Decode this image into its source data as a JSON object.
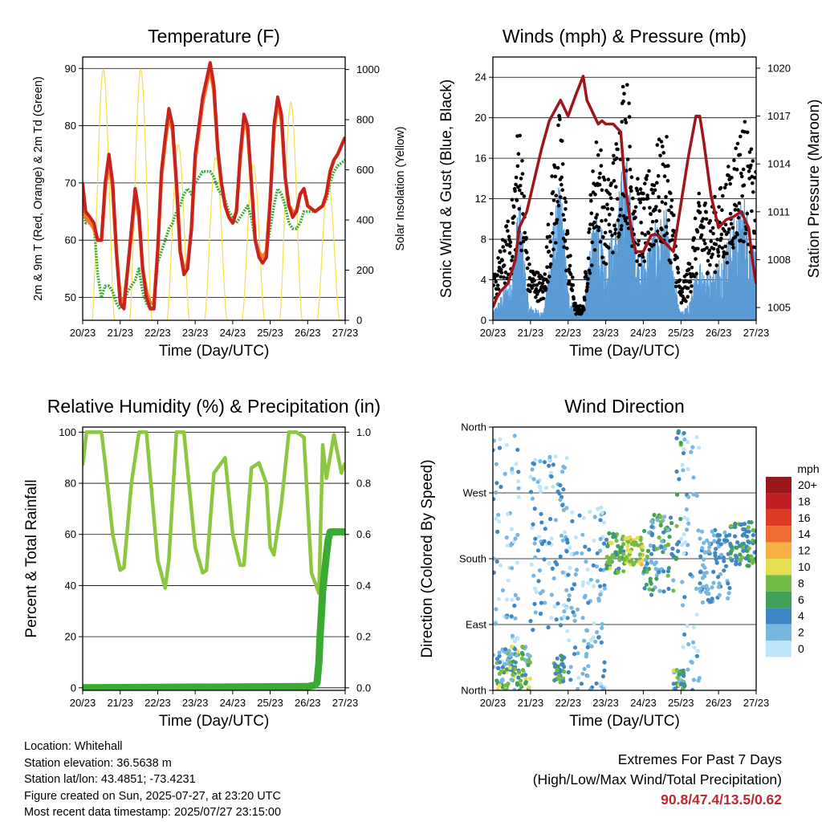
{
  "time_ticks": [
    "20/23",
    "21/23",
    "22/23",
    "23/23",
    "24/23",
    "25/23",
    "26/23",
    "27/23"
  ],
  "xlabel": "Time (Day/UTC)",
  "chart_data": [
    {
      "type": "line",
      "title": "Temperature (F)",
      "xlabel": "Time (Day/UTC)",
      "ylabel": "2m & 9m T (Red, Orange) & 2m Td (Green)",
      "y2label": "Solar Insolation (Yellow)",
      "ylim": [
        46,
        92
      ],
      "yticks": [
        50,
        60,
        70,
        80,
        90
      ],
      "y2lim": [
        0,
        1050
      ],
      "y2ticks": [
        0,
        200,
        400,
        600,
        800,
        1000
      ],
      "grid": "horizontal",
      "x_days": [
        0,
        0.08,
        0.2,
        0.3,
        0.4,
        0.5,
        0.6,
        0.7,
        0.8,
        0.9,
        1.0,
        1.1,
        1.2,
        1.3,
        1.4,
        1.5,
        1.6,
        1.7,
        1.8,
        1.9,
        2.0,
        2.1,
        2.2,
        2.3,
        2.4,
        2.5,
        2.6,
        2.7,
        2.8,
        2.9,
        3.0,
        3.2,
        3.4,
        3.5,
        3.6,
        3.7,
        3.8,
        3.9,
        4.0,
        4.1,
        4.2,
        4.3,
        4.4,
        4.5,
        4.6,
        4.7,
        4.8,
        4.9,
        5.0,
        5.1,
        5.2,
        5.3,
        5.4,
        5.5,
        5.6,
        5.7,
        5.8,
        5.9,
        6.0,
        6.2,
        6.4,
        6.5,
        6.6,
        6.7,
        6.8,
        7.0
      ],
      "series": [
        {
          "name": "2m T",
          "color": "#c8211f",
          "values": [
            70,
            65,
            64,
            63,
            60,
            60,
            70,
            75,
            70,
            58,
            49,
            48,
            55,
            62,
            69,
            65,
            55,
            50,
            48,
            48,
            58,
            72,
            78,
            83,
            80,
            70,
            58,
            54,
            55,
            62,
            75,
            85,
            91,
            87,
            76,
            70,
            66,
            64,
            63,
            65,
            75,
            82,
            80,
            70,
            60,
            57,
            56,
            57,
            67,
            80,
            85,
            82,
            71,
            66,
            64,
            65,
            68,
            69,
            66,
            65,
            66,
            68,
            72,
            74,
            75,
            78
          ]
        },
        {
          "name": "9m T",
          "color": "#f47b20",
          "values": [
            69,
            64,
            63,
            62,
            60,
            60,
            69,
            74,
            69,
            58,
            50,
            49,
            55,
            61,
            68,
            64,
            55,
            51,
            49,
            49,
            58,
            71,
            77,
            82,
            79,
            70,
            58,
            55,
            56,
            62,
            74,
            84,
            90,
            86,
            76,
            70,
            66,
            64,
            63,
            65,
            74,
            81,
            79,
            70,
            60,
            58,
            57,
            58,
            67,
            79,
            84,
            81,
            71,
            66,
            65,
            65,
            68,
            69,
            66,
            65,
            66,
            68,
            72,
            74,
            75,
            78
          ]
        },
        {
          "name": "2m Td",
          "color": "#3aaa35",
          "values": [
            66,
            63,
            63,
            63,
            54,
            50,
            52,
            52,
            51,
            49,
            48,
            49,
            51,
            52,
            53,
            55,
            51,
            49,
            48,
            49,
            56,
            58,
            60,
            62,
            63,
            65,
            66,
            68,
            69,
            68,
            70,
            72,
            72,
            71,
            69,
            68,
            67,
            65,
            64,
            63,
            64,
            65,
            66,
            64,
            60,
            58,
            57,
            58,
            62,
            66,
            69,
            68,
            66,
            63,
            62,
            62,
            63,
            65,
            65,
            65,
            66,
            67,
            70,
            72,
            73,
            74
          ]
        }
      ],
      "solar_insolation": {
        "name": "Solar Insolation",
        "color": "#f5de4b",
        "days": [
          0.55,
          1.55,
          2.55,
          3.55,
          4.55,
          5.55,
          6.55
        ],
        "peak_values": [
          1000,
          1000,
          700,
          650,
          620,
          870,
          550
        ]
      }
    },
    {
      "type": "line",
      "title": "Winds (mph) & Pressure (mb)",
      "xlabel": "Time (Day/UTC)",
      "ylabel": "Sonic Wind & Gust (Blue, Black)",
      "y2label": "Station Pressure (Maroon)",
      "ylim": [
        0,
        26
      ],
      "yticks": [
        0,
        4,
        8,
        12,
        16,
        20,
        24
      ],
      "y2lim": [
        1004.2,
        1020.7
      ],
      "y2ticks": [
        1005,
        1008,
        1011,
        1014,
        1017,
        1020
      ],
      "grid": "horizontal",
      "pressure": {
        "name": "Station Pressure",
        "color": "#a0141b",
        "x_days": [
          0,
          0.1,
          0.2,
          0.4,
          0.6,
          0.7,
          0.9,
          1.1,
          1.3,
          1.5,
          1.8,
          2.0,
          2.2,
          2.4,
          2.5,
          2.8,
          2.9,
          3.0,
          3.2,
          3.4,
          3.5,
          3.7,
          3.8,
          4.0,
          4.1,
          4.2,
          4.3,
          4.4,
          4.6,
          4.8,
          5.0,
          5.2,
          5.4,
          5.5,
          5.6,
          5.8,
          6.0,
          6.2,
          6.4,
          6.6,
          6.8,
          6.9,
          7.0
        ],
        "values": [
          1005,
          1005.6,
          1006,
          1006.5,
          1008,
          1010,
          1011,
          1013,
          1015,
          1016.7,
          1018,
          1017,
          1018.3,
          1019.5,
          1018,
          1016.5,
          1016.7,
          1016.5,
          1016.5,
          1016,
          1013,
          1009.5,
          1008.5,
          1008.5,
          1009,
          1009.5,
          1009.6,
          1009.5,
          1009,
          1008.5,
          1011.5,
          1014.5,
          1017,
          1017,
          1015.5,
          1012,
          1010,
          1010.5,
          1010.7,
          1011,
          1010,
          1008,
          1006.5
        ]
      },
      "wind_profile": {
        "x_days": [
          0,
          0.5,
          0.7,
          0.95,
          1.35,
          1.6,
          1.8,
          2.0,
          2.2,
          2.4,
          2.6,
          2.8,
          3.0,
          3.3,
          3.5,
          3.6,
          3.8,
          4.0,
          4.3,
          4.6,
          4.8,
          5.0,
          5.2,
          5.5,
          5.8,
          6.2,
          6.5,
          6.7,
          7.0
        ],
        "sustained": [
          0.5,
          3,
          8,
          1,
          0.5,
          6,
          9,
          2,
          0.5,
          0.5,
          5,
          8,
          4,
          7,
          11,
          10,
          5,
          4,
          6,
          7,
          3,
          0.5,
          1,
          4,
          3,
          5,
          7,
          8,
          4
        ],
        "gust": [
          3,
          8,
          15,
          4,
          3,
          11,
          15,
          6,
          1,
          1,
          9,
          14,
          9,
          13,
          18,
          16,
          10,
          9,
          12,
          13,
          8,
          2,
          4,
          9,
          8,
          10,
          13,
          14,
          10
        ]
      },
      "series": [
        {
          "name": "Sonic Wind",
          "color": "#5b9bd5"
        },
        {
          "name": "Gust",
          "color": "#000000"
        }
      ]
    },
    {
      "type": "line",
      "title": "Relative Humidity (%) & Precipitation (in)",
      "xlabel": "Time (Day/UTC)",
      "ylabel": "Percent & Total Rainfall",
      "ylim": [
        -1,
        102
      ],
      "yticks": [
        0,
        20,
        40,
        60,
        80,
        100
      ],
      "y2lim": [
        -0.01,
        1.02
      ],
      "y2ticks": [
        0.0,
        0.2,
        0.4,
        0.6,
        0.8,
        1.0
      ],
      "grid": "horizontal",
      "series": [
        {
          "name": "Relative Humidity",
          "color": "#8dc63f",
          "x_days": [
            0,
            0.1,
            0.3,
            0.5,
            0.6,
            0.8,
            1.0,
            1.1,
            1.3,
            1.5,
            1.7,
            2.0,
            2.2,
            2.3,
            2.5,
            2.7,
            3.0,
            3.2,
            3.3,
            3.5,
            3.8,
            4.0,
            4.2,
            4.3,
            4.5,
            4.7,
            4.9,
            5.0,
            5.1,
            5.3,
            5.5,
            5.7,
            5.9,
            6.1,
            6.3,
            6.4,
            6.5,
            6.7,
            6.9,
            7.0
          ],
          "values": [
            87,
            100,
            100,
            100,
            88,
            60,
            46,
            47,
            80,
            100,
            100,
            50,
            39,
            50,
            100,
            100,
            55,
            45,
            46,
            84,
            90,
            60,
            48,
            48,
            86,
            88,
            80,
            55,
            52,
            72,
            100,
            100,
            98,
            45,
            37,
            95,
            82,
            99,
            84,
            88
          ]
        },
        {
          "name": "Total Precipitation",
          "color": "#3aaa35",
          "x_days": [
            0,
            6.0,
            6.2,
            6.25,
            6.3,
            6.33,
            6.37,
            6.4,
            6.45,
            6.5,
            6.55,
            6.6,
            6.65,
            7.0
          ],
          "values": [
            0,
            0.005,
            0.01,
            0.02,
            0.1,
            0.2,
            0.3,
            0.38,
            0.45,
            0.52,
            0.58,
            0.61,
            0.61,
            0.61
          ]
        }
      ]
    },
    {
      "type": "scatter",
      "title": "Wind Direction",
      "xlabel": "Time (Day/UTC)",
      "ylabel": "Direction (Colored By Speed)",
      "ylim": [
        0,
        360
      ],
      "yticks": [
        "North",
        "East",
        "South",
        "West",
        "North"
      ],
      "grid": "horizontal",
      "legend_title": "mph",
      "legend_labels": [
        "0",
        "2",
        "4",
        "6",
        "8",
        "10",
        "12",
        "14",
        "16",
        "18",
        "20+"
      ],
      "legend_colors": [
        "#bfe6f8",
        "#79b7e3",
        "#3e87c3",
        "#3fa05b",
        "#74bb43",
        "#e4df52",
        "#f7b043",
        "#ef6c30",
        "#de3a26",
        "#c11f24",
        "#99171b"
      ],
      "clusters": [
        {
          "day_start": 0.0,
          "day_end": 0.7,
          "dir_min": 0,
          "dir_max": 360,
          "speed_min": 0,
          "speed_max": 4
        },
        {
          "day_start": 0.1,
          "day_end": 1.0,
          "dir_min": 0,
          "dir_max": 60,
          "speed_min": 2,
          "speed_max": 11
        },
        {
          "day_start": 1.0,
          "day_end": 2.0,
          "dir_min": 80,
          "dir_max": 320,
          "speed_min": 0,
          "speed_max": 5
        },
        {
          "day_start": 1.6,
          "day_end": 1.9,
          "dir_min": 10,
          "dir_max": 50,
          "speed_min": 3,
          "speed_max": 9
        },
        {
          "day_start": 2.0,
          "day_end": 3.0,
          "dir_min": 0,
          "dir_max": 250,
          "speed_min": 0,
          "speed_max": 5
        },
        {
          "day_start": 3.0,
          "day_end": 3.5,
          "dir_min": 160,
          "dir_max": 215,
          "speed_min": 4,
          "speed_max": 10
        },
        {
          "day_start": 3.5,
          "day_end": 4.0,
          "dir_min": 170,
          "dir_max": 210,
          "speed_min": 7,
          "speed_max": 14
        },
        {
          "day_start": 4.0,
          "day_end": 4.8,
          "dir_min": 130,
          "dir_max": 240,
          "speed_min": 2,
          "speed_max": 8
        },
        {
          "day_start": 4.85,
          "day_end": 5.0,
          "dir_min": 170,
          "dir_max": 360,
          "speed_min": 3,
          "speed_max": 9
        },
        {
          "day_start": 4.8,
          "day_end": 5.1,
          "dir_min": 0,
          "dir_max": 30,
          "speed_min": 2,
          "speed_max": 10
        },
        {
          "day_start": 5.0,
          "day_end": 5.5,
          "dir_min": 0,
          "dir_max": 360,
          "speed_min": 0,
          "speed_max": 4
        },
        {
          "day_start": 5.5,
          "day_end": 6.3,
          "dir_min": 120,
          "dir_max": 220,
          "speed_min": 1,
          "speed_max": 5
        },
        {
          "day_start": 6.3,
          "day_end": 7.0,
          "dir_min": 170,
          "dir_max": 230,
          "speed_min": 3,
          "speed_max": 9
        }
      ]
    }
  ],
  "station_info": {
    "location": "Location: Whitehall",
    "elevation": "Station elevation: 36.5638 m",
    "latlon": "Station lat/lon: 43.4851; -73.4231",
    "created": "Figure created on Sun, 2025-07-27, at 23:20 UTC",
    "recent": "Most recent data timestamp: 2025/07/27 23:15:00"
  },
  "extremes": {
    "title": "Extremes For Past 7 Days",
    "subtitle": "(High/Low/Max Wind/Total Precipitation)",
    "values": "90.8/47.4/13.5/0.62"
  }
}
